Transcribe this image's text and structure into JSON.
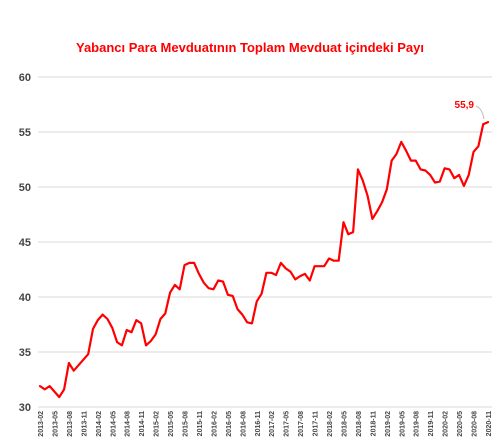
{
  "chart_data": {
    "type": "line",
    "title": "Yabancı Para Mevduatının Toplam Mevduat içindeki Payı",
    "xlabel": "",
    "ylabel": "",
    "ylim": [
      30,
      60
    ],
    "yticks": [
      "60",
      "55",
      "50",
      "45",
      "40",
      "35",
      "30"
    ],
    "ytick_values": [
      60,
      55,
      50,
      45,
      40,
      35,
      30
    ],
    "grid": "horizontal",
    "x_tick_labels": [
      "2013-02",
      "2013-05",
      "2013-08",
      "2013-11",
      "2014-02",
      "2014-05",
      "2014-08",
      "2014-11",
      "2015-02",
      "2015-05",
      "2015-08",
      "2015-11",
      "2016-02",
      "2016-05",
      "2016-08",
      "2016-11",
      "2017-02",
      "2017-05",
      "2017-08",
      "2017-11",
      "2018-02",
      "2018-05",
      "2018-08",
      "2018-11",
      "2019-02",
      "2019-05",
      "2019-08",
      "2019-11",
      "2020-02",
      "2020-05",
      "2020-08",
      "2020-11"
    ],
    "x": [
      "2013-02",
      "2013-03",
      "2013-04",
      "2013-05",
      "2013-06",
      "2013-07",
      "2013-08",
      "2013-09",
      "2013-10",
      "2013-11",
      "2013-12",
      "2014-01",
      "2014-02",
      "2014-03",
      "2014-04",
      "2014-05",
      "2014-06",
      "2014-07",
      "2014-08",
      "2014-09",
      "2014-10",
      "2014-11",
      "2014-12",
      "2015-01",
      "2015-02",
      "2015-03",
      "2015-04",
      "2015-05",
      "2015-06",
      "2015-07",
      "2015-08",
      "2015-09",
      "2015-10",
      "2015-11",
      "2015-12",
      "2016-01",
      "2016-02",
      "2016-03",
      "2016-04",
      "2016-05",
      "2016-06",
      "2016-07",
      "2016-08",
      "2016-09",
      "2016-10",
      "2016-11",
      "2016-12",
      "2017-01",
      "2017-02",
      "2017-03",
      "2017-04",
      "2017-05",
      "2017-06",
      "2017-07",
      "2017-08",
      "2017-09",
      "2017-10",
      "2017-11",
      "2017-12",
      "2018-01",
      "2018-02",
      "2018-03",
      "2018-04",
      "2018-05",
      "2018-06",
      "2018-07",
      "2018-08",
      "2018-09",
      "2018-10",
      "2018-11",
      "2018-12",
      "2019-01",
      "2019-02",
      "2019-03",
      "2019-04",
      "2019-05",
      "2019-06",
      "2019-07",
      "2019-08",
      "2019-09",
      "2019-10",
      "2019-11",
      "2019-12",
      "2020-01",
      "2020-02",
      "2020-03",
      "2020-04",
      "2020-05",
      "2020-06",
      "2020-07",
      "2020-08",
      "2020-09",
      "2020-10",
      "2020-11"
    ],
    "series": [
      {
        "color": "#ff0000",
        "values": [
          31.9,
          31.6,
          31.9,
          31.4,
          30.9,
          31.6,
          34.0,
          33.3,
          33.8,
          34.3,
          34.8,
          37.1,
          37.9,
          38.4,
          38.0,
          37.2,
          35.9,
          35.6,
          37.0,
          36.8,
          37.9,
          37.6,
          35.6,
          36.0,
          36.6,
          38.0,
          38.5,
          40.4,
          41.1,
          40.7,
          42.9,
          43.1,
          43.1,
          42.1,
          41.3,
          40.8,
          40.7,
          41.5,
          41.4,
          40.2,
          40.1,
          38.9,
          38.4,
          37.7,
          37.6,
          39.6,
          40.3,
          42.2,
          42.2,
          42.0,
          43.1,
          42.6,
          42.3,
          41.6,
          41.9,
          42.1,
          41.5,
          42.8,
          42.8,
          42.8,
          43.5,
          43.3,
          43.3,
          46.8,
          45.7,
          45.9,
          51.6,
          50.6,
          49.2,
          47.1,
          47.8,
          48.6,
          49.8,
          52.4,
          53.0,
          54.1,
          53.3,
          52.4,
          52.4,
          51.6,
          51.5,
          51.1,
          50.4,
          50.5,
          51.7,
          51.6,
          50.8,
          51.1,
          50.1,
          51.1,
          53.2,
          53.7,
          55.7,
          55.9
        ]
      }
    ],
    "annotations": [
      {
        "text": "55,9"
      }
    ]
  }
}
